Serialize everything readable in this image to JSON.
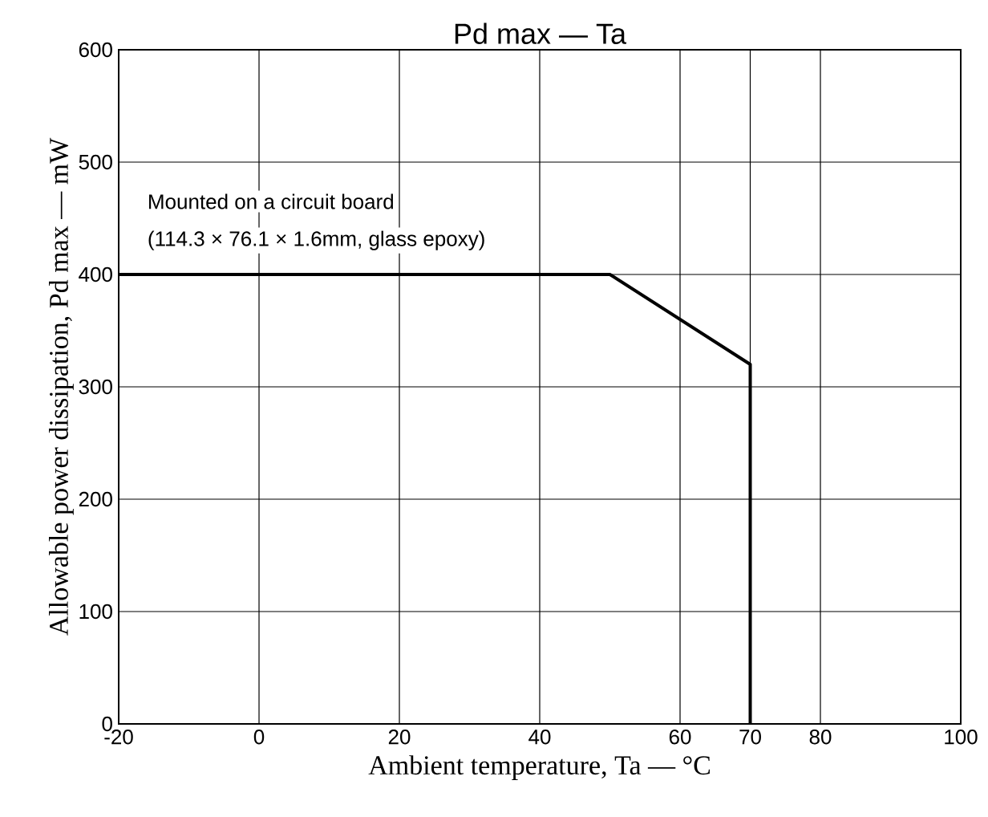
{
  "chart_data": {
    "type": "line",
    "title": "Pd max — Ta",
    "xlabel": "Ambient temperature, Ta — °C",
    "ylabel": "Allowable power dissipation, Pd max — mW",
    "x": [
      -20,
      50,
      70,
      70
    ],
    "series": [
      {
        "color": "#000000",
        "values": [
          400,
          400,
          320,
          0
        ]
      }
    ],
    "xlim": [
      -20,
      100
    ],
    "xticks": [
      -20,
      0,
      20,
      40,
      60,
      70,
      80,
      100
    ],
    "ylim": [
      0,
      600
    ],
    "yticks": [
      0,
      100,
      200,
      300,
      400,
      500,
      600
    ],
    "grid": true,
    "annotations": [
      "Mounted on a circuit board",
      "(114.3 × 76.1 × 1.6mm, glass epoxy)"
    ]
  }
}
